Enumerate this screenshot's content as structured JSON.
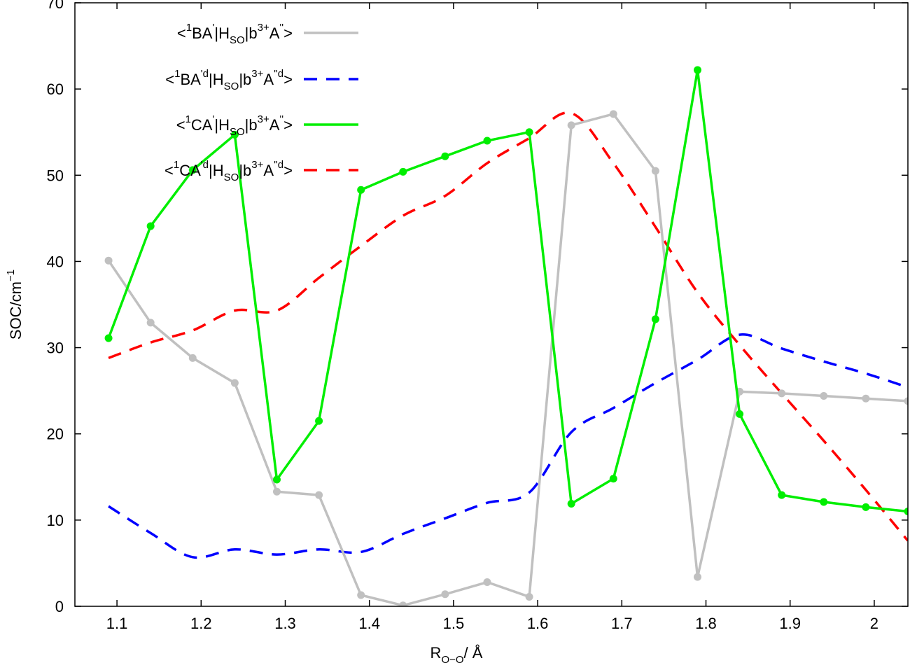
{
  "chart_data": {
    "type": "line",
    "xlabel": {
      "main": "R",
      "sub": "O−O",
      "unit": "/ Å"
    },
    "ylabel": {
      "main": "SOC/cm",
      "sup": "−1"
    },
    "xlim": [
      1.05,
      2.04
    ],
    "ylim": [
      0,
      70
    ],
    "xticks": [
      1.1,
      1.2,
      1.3,
      1.4,
      1.5,
      1.6,
      1.7,
      1.8,
      1.9,
      2.0
    ],
    "xtick_labels": [
      "1.1",
      "1.2",
      "1.3",
      "1.4",
      "1.5",
      "1.6",
      "1.7",
      "1.8",
      "1.9",
      "2"
    ],
    "yticks": [
      0,
      10,
      20,
      30,
      40,
      50,
      60,
      70
    ],
    "ytick_labels": [
      "0",
      "10",
      "20",
      "30",
      "40",
      "50",
      "60",
      "70"
    ],
    "grid": false,
    "legend_position": "top-left",
    "series": [
      {
        "legend": {
          "pre": "<",
          "sup1": "1",
          "state1": "BA",
          "sup2": "'",
          "mid": "|H",
          "sub": "SO",
          "mid2": "|b",
          "sup3": "3+",
          "state2": "A",
          "sup4": "''",
          "post": ">"
        },
        "color": "#c0c0c0",
        "style": "solid",
        "markers": true,
        "x": [
          1.09,
          1.14,
          1.19,
          1.24,
          1.29,
          1.34,
          1.39,
          1.44,
          1.49,
          1.54,
          1.59,
          1.64,
          1.69,
          1.74,
          1.79,
          1.84,
          1.89,
          1.94,
          1.99,
          2.04
        ],
        "y": [
          40.1,
          32.9,
          28.8,
          25.9,
          13.3,
          12.9,
          1.3,
          0.1,
          1.4,
          2.8,
          1.1,
          55.8,
          57.1,
          50.5,
          3.4,
          24.9,
          24.7,
          24.4,
          24.1,
          23.8
        ]
      },
      {
        "legend": {
          "pre": "<",
          "sup1": "1",
          "state1": "BA",
          "sup2": "'d",
          "mid": "|H",
          "sub": "SO",
          "mid2": "|b",
          "sup3": "3+",
          "state2": "A",
          "sup4": "''d",
          "post": ">"
        },
        "color": "#0000ff",
        "style": "dashed",
        "markers": false,
        "x": [
          1.09,
          1.14,
          1.19,
          1.24,
          1.29,
          1.34,
          1.39,
          1.44,
          1.49,
          1.54,
          1.59,
          1.64,
          1.69,
          1.74,
          1.79,
          1.84,
          1.89,
          1.94,
          1.99,
          2.04
        ],
        "y": [
          11.6,
          8.5,
          5.7,
          6.6,
          6.0,
          6.6,
          6.3,
          8.4,
          10.2,
          12.0,
          13.2,
          20.2,
          23.0,
          25.9,
          28.6,
          31.5,
          29.9,
          28.4,
          27.0,
          25.4
        ]
      },
      {
        "legend": {
          "pre": "<",
          "sup1": "1",
          "state1": "CA",
          "sup2": "'",
          "mid": "|H",
          "sub": "SO",
          "mid2": "|b",
          "sup3": "3+",
          "state2": "A",
          "sup4": "''",
          "post": ">"
        },
        "color": "#00ee00",
        "style": "solid",
        "markers": true,
        "x": [
          1.09,
          1.14,
          1.19,
          1.24,
          1.29,
          1.34,
          1.39,
          1.44,
          1.49,
          1.54,
          1.59,
          1.64,
          1.69,
          1.74,
          1.79,
          1.84,
          1.89,
          1.94,
          1.99,
          2.04
        ],
        "y": [
          31.1,
          44.1,
          50.6,
          54.7,
          14.7,
          21.5,
          48.3,
          50.4,
          52.2,
          54.0,
          55.0,
          11.9,
          14.8,
          33.3,
          62.2,
          22.3,
          12.9,
          12.1,
          11.5,
          11.0
        ]
      },
      {
        "legend": {
          "pre": "<",
          "sup1": "1",
          "state1": "CA",
          "sup2": "'d",
          "mid": "|H",
          "sub": "SO",
          "mid2": "|b",
          "sup3": "3+",
          "state2": "A",
          "sup4": "''d",
          "post": ">"
        },
        "color": "#ff0000",
        "style": "dashed",
        "markers": false,
        "x": [
          1.09,
          1.14,
          1.19,
          1.24,
          1.29,
          1.34,
          1.39,
          1.44,
          1.49,
          1.54,
          1.59,
          1.64,
          1.69,
          1.74,
          1.79,
          1.84,
          1.89,
          1.94,
          1.99,
          2.04
        ],
        "y": [
          28.8,
          30.6,
          32.0,
          34.3,
          34.3,
          38.1,
          41.8,
          45.3,
          47.6,
          51.4,
          54.3,
          57.2,
          51.4,
          44.0,
          36.4,
          30.3,
          24.7,
          19.2,
          13.5,
          7.6
        ]
      }
    ]
  }
}
